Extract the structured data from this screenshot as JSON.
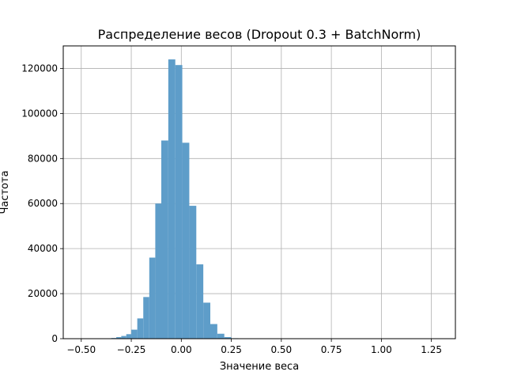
{
  "chart_data": {
    "type": "histogram",
    "title": "Распределение весов (Dropout 0.3 + BatchNorm)",
    "xlabel": "Значение веса",
    "ylabel": "Частота",
    "xlim": [
      -0.59,
      1.37
    ],
    "ylim": [
      0,
      130000
    ],
    "x_ticks": [
      -0.5,
      -0.25,
      0.0,
      0.25,
      0.5,
      0.75,
      1.0,
      1.25
    ],
    "x_tick_labels": [
      "−0.50",
      "−0.25",
      "0.00",
      "0.25",
      "0.50",
      "0.75",
      "1.00",
      "1.25"
    ],
    "y_ticks": [
      0,
      20000,
      40000,
      60000,
      80000,
      100000,
      120000
    ],
    "y_tick_labels": [
      "0",
      "20000",
      "40000",
      "60000",
      "80000",
      "100000",
      "120000"
    ],
    "grid": true,
    "bar_color": "#5e9dc9",
    "bins": [
      {
        "left": -0.35,
        "right": -0.325,
        "count": 300
      },
      {
        "left": -0.325,
        "right": -0.3,
        "count": 700
      },
      {
        "left": -0.3,
        "right": -0.275,
        "count": 1200
      },
      {
        "left": -0.275,
        "right": -0.25,
        "count": 2000
      },
      {
        "left": -0.25,
        "right": -0.22,
        "count": 4000
      },
      {
        "left": -0.22,
        "right": -0.19,
        "count": 9000
      },
      {
        "left": -0.19,
        "right": -0.16,
        "count": 18500
      },
      {
        "left": -0.16,
        "right": -0.13,
        "count": 36000
      },
      {
        "left": -0.13,
        "right": -0.1,
        "count": 60000
      },
      {
        "left": -0.1,
        "right": -0.065,
        "count": 88000
      },
      {
        "left": -0.065,
        "right": -0.03,
        "count": 124000
      },
      {
        "left": -0.03,
        "right": 0.005,
        "count": 121500
      },
      {
        "left": 0.005,
        "right": 0.04,
        "count": 87000
      },
      {
        "left": 0.04,
        "right": 0.075,
        "count": 59000
      },
      {
        "left": 0.075,
        "right": 0.11,
        "count": 33000
      },
      {
        "left": 0.11,
        "right": 0.145,
        "count": 16000
      },
      {
        "left": 0.145,
        "right": 0.18,
        "count": 6500
      },
      {
        "left": 0.18,
        "right": 0.215,
        "count": 2200
      },
      {
        "left": 0.215,
        "right": 0.25,
        "count": 700
      },
      {
        "left": 0.25,
        "right": 0.285,
        "count": 200
      },
      {
        "left": 0.285,
        "right": 0.32,
        "count": 60
      }
    ]
  }
}
